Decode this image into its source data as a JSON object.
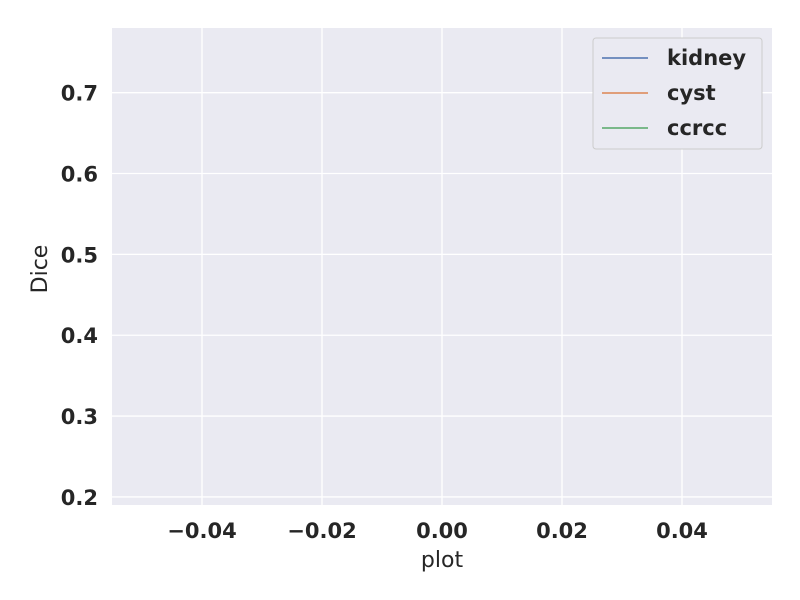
{
  "chart_data": {
    "type": "line",
    "title": "",
    "xlabel": "plot",
    "ylabel": "Dice",
    "xlim": [
      -0.055,
      0.055
    ],
    "ylim": [
      0.19,
      0.78
    ],
    "x_ticks": [
      -0.04,
      -0.02,
      0.0,
      0.02,
      0.04
    ],
    "x_tick_labels": [
      "−0.04",
      "−0.02",
      "0.00",
      "0.02",
      "0.04"
    ],
    "y_ticks": [
      0.2,
      0.3,
      0.4,
      0.5,
      0.6,
      0.7
    ],
    "y_tick_labels": [
      "0.2",
      "0.3",
      "0.4",
      "0.5",
      "0.6",
      "0.7"
    ],
    "grid": true,
    "legend_position": "top-right",
    "series": [
      {
        "name": "kidney",
        "color": "#4c72b0",
        "x": [],
        "y": []
      },
      {
        "name": "cyst",
        "color": "#dd8452",
        "x": [],
        "y": []
      },
      {
        "name": "ccrcc",
        "color": "#55a868",
        "x": [],
        "y": []
      }
    ]
  },
  "colors": {
    "plot_background": "#eaeaf2",
    "grid": "#ffffff",
    "text": "#262626"
  }
}
